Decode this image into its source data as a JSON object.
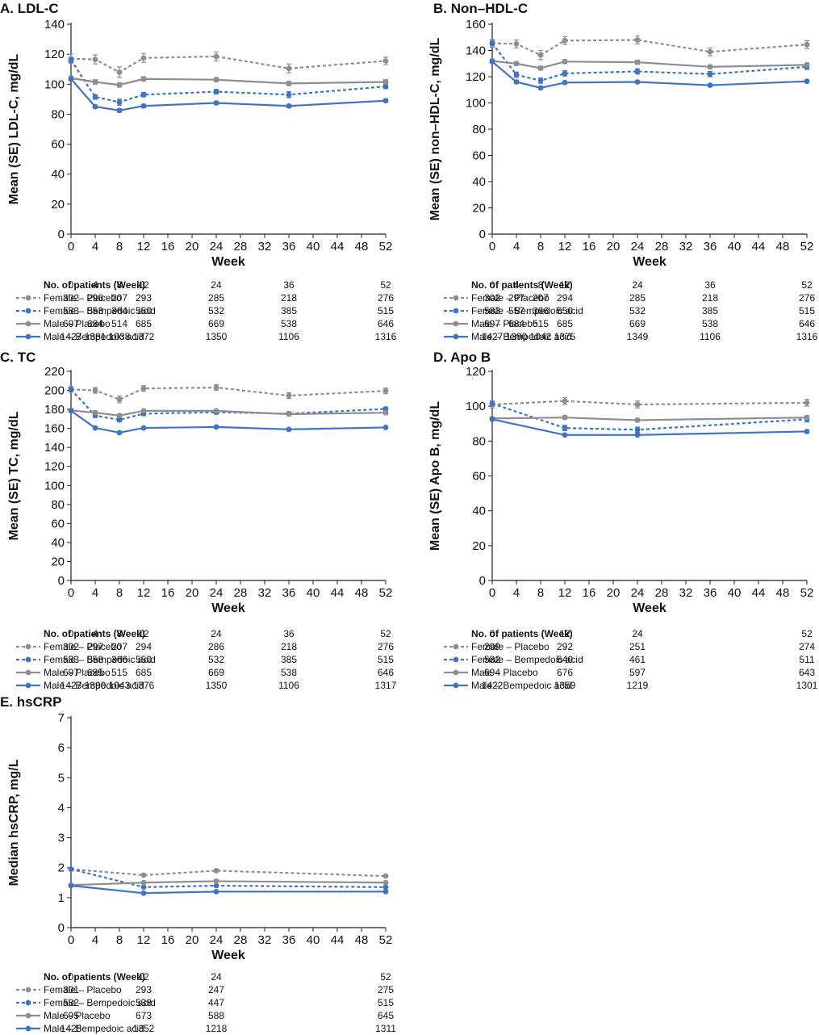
{
  "figure": {
    "n_header": "No. of patients (Week)",
    "legend_colors": {
      "female_placebo": "#8e8e8e",
      "female_bempedoic": "#3d74c4",
      "male_placebo": "#8e8e8e",
      "male_bempedoic": "#3d74c4"
    }
  },
  "chart_data": [
    {
      "id": "A",
      "type": "line",
      "title": "A. LDL-C",
      "xlabel": "Week",
      "ylabel": "Mean (SE) LDL-C, mg/dL",
      "xlim": [
        0,
        52
      ],
      "ylim": [
        0,
        140
      ],
      "xticks": [
        0,
        4,
        8,
        12,
        16,
        20,
        24,
        28,
        32,
        36,
        40,
        44,
        48,
        52
      ],
      "yticks": [
        0,
        20,
        40,
        60,
        80,
        100,
        120,
        140
      ],
      "series": [
        {
          "name": "Female – Placebo",
          "style": "dashed",
          "color": "#8e8e8e",
          "x": [
            0,
            4,
            8,
            12,
            24,
            36,
            52
          ],
          "y": [
            117,
            116.5,
            108,
            117.5,
            118.5,
            110.5,
            115.5
          ],
          "err": [
            3,
            3,
            3.5,
            3,
            3,
            3,
            2.5
          ],
          "n": [
            "302",
            "296",
            "207",
            "293",
            "285",
            "218",
            "276"
          ]
        },
        {
          "name": "Female – Bempedoic acid",
          "style": "dashed",
          "color": "#3d74c4",
          "x": [
            0,
            4,
            8,
            12,
            24,
            36,
            52
          ],
          "y": [
            116,
            91.5,
            88,
            93,
            95,
            93,
            98.5
          ],
          "err": [
            1.5,
            1.5,
            2,
            1.5,
            1.5,
            2,
            1.5
          ],
          "n": [
            "583",
            "553",
            "364",
            "550",
            "532",
            "385",
            "515"
          ]
        },
        {
          "name": "Male – Placebo",
          "style": "solid",
          "color": "#8e8e8e",
          "x": [
            0,
            4,
            8,
            12,
            24,
            36,
            52
          ],
          "y": [
            104,
            101.5,
            99.5,
            103.5,
            103,
            100.5,
            101.5
          ],
          "err": [
            1.5,
            1.5,
            1.5,
            1.5,
            1.5,
            1.5,
            1.5
          ],
          "n": [
            "697",
            "684",
            "514",
            "685",
            "669",
            "538",
            "646"
          ]
        },
        {
          "name": "Male – Bempedoic acid",
          "style": "solid",
          "color": "#3d74c4",
          "x": [
            0,
            4,
            8,
            12,
            24,
            36,
            52
          ],
          "y": [
            103.5,
            85,
            82.5,
            85.5,
            87.5,
            85.5,
            89
          ],
          "err": [
            1,
            1,
            1,
            1,
            1,
            1,
            1
          ],
          "n": [
            "1427",
            "1381",
            "1038",
            "1372",
            "1350",
            "1106",
            "1316"
          ]
        }
      ]
    },
    {
      "id": "B",
      "type": "line",
      "title": "B. Non–HDL-C",
      "xlabel": "Week",
      "ylabel": "Mean (SE) non–HDL-C, mg/dL",
      "xlim": [
        0,
        52
      ],
      "ylim": [
        0,
        160
      ],
      "xticks": [
        0,
        4,
        8,
        12,
        16,
        20,
        24,
        28,
        32,
        36,
        40,
        44,
        48,
        52
      ],
      "yticks": [
        0,
        20,
        40,
        60,
        80,
        100,
        120,
        140,
        160
      ],
      "series": [
        {
          "name": "Female – Placebo",
          "style": "dashed",
          "color": "#8e8e8e",
          "x": [
            0,
            4,
            8,
            12,
            24,
            36,
            52
          ],
          "y": [
            145.5,
            145,
            136.5,
            147.5,
            148,
            139,
            144.5
          ],
          "err": [
            3,
            3,
            3.5,
            3,
            3,
            3,
            3
          ],
          "n": [
            "302",
            "297",
            "207",
            "294",
            "285",
            "218",
            "276"
          ]
        },
        {
          "name": "Female – Bempedoic acid",
          "style": "dashed",
          "color": "#3d74c4",
          "x": [
            0,
            4,
            8,
            12,
            24,
            36,
            52
          ],
          "y": [
            145.5,
            121.5,
            117,
            122.5,
            124,
            122,
            127.5
          ],
          "err": [
            2,
            2,
            2,
            2,
            2,
            2,
            2
          ],
          "n": [
            "583",
            "557",
            "366",
            "550",
            "532",
            "385",
            "515"
          ]
        },
        {
          "name": "Male – Placebo",
          "style": "solid",
          "color": "#8e8e8e",
          "x": [
            0,
            4,
            8,
            12,
            24,
            36,
            52
          ],
          "y": [
            132,
            130,
            126.5,
            131.5,
            131,
            127.5,
            129
          ],
          "err": [
            1.5,
            1.5,
            1.5,
            1.5,
            1.5,
            1.5,
            1.5
          ],
          "n": [
            "697",
            "684",
            "515",
            "685",
            "669",
            "538",
            "646"
          ]
        },
        {
          "name": "Male – Bempedoic acid",
          "style": "solid",
          "color": "#3d74c4",
          "x": [
            0,
            4,
            8,
            12,
            24,
            36,
            52
          ],
          "y": [
            131.5,
            116,
            111.5,
            115.5,
            116,
            113.5,
            116.5
          ],
          "err": [
            1,
            1,
            1,
            1,
            1,
            1,
            1
          ],
          "n": [
            "1427",
            "1390",
            "1042",
            "1375",
            "1349",
            "1106",
            "1316"
          ]
        }
      ]
    },
    {
      "id": "C",
      "type": "line",
      "title": "C. TC",
      "xlabel": "Week",
      "ylabel": "Mean (SE) TC, mg/dL",
      "xlim": [
        0,
        52
      ],
      "ylim": [
        0,
        220
      ],
      "xticks": [
        0,
        4,
        8,
        12,
        16,
        20,
        24,
        28,
        32,
        36,
        40,
        44,
        48,
        52
      ],
      "yticks": [
        0,
        20,
        40,
        60,
        80,
        100,
        120,
        140,
        160,
        180,
        200,
        220
      ],
      "series": [
        {
          "name": "Female – Placebo",
          "style": "dashed",
          "color": "#8e8e8e",
          "x": [
            0,
            4,
            8,
            12,
            24,
            36,
            52
          ],
          "y": [
            201,
            200,
            190.5,
            202,
            203,
            194.5,
            199.5
          ],
          "err": [
            3,
            3,
            3.5,
            3,
            3,
            3,
            3
          ],
          "n": [
            "302",
            "297",
            "207",
            "294",
            "286",
            "218",
            "276"
          ]
        },
        {
          "name": "Female – Bempedoic acid",
          "style": "dashed",
          "color": "#3d74c4",
          "x": [
            0,
            4,
            8,
            12,
            24,
            36,
            52
          ],
          "y": [
            201,
            173.5,
            169,
            175.5,
            177,
            175.5,
            180.5
          ],
          "err": [
            2,
            2,
            2,
            2,
            2,
            2,
            2
          ],
          "n": [
            "583",
            "558",
            "366",
            "550",
            "532",
            "385",
            "515"
          ]
        },
        {
          "name": "Male – Placebo",
          "style": "solid",
          "color": "#8e8e8e",
          "x": [
            0,
            4,
            8,
            12,
            24,
            36,
            52
          ],
          "y": [
            179,
            176.5,
            173.5,
            178.5,
            178.5,
            175,
            176.5
          ],
          "err": [
            1.5,
            1.5,
            1.5,
            1.5,
            1.5,
            1.5,
            1.5
          ],
          "n": [
            "697",
            "685",
            "515",
            "685",
            "669",
            "538",
            "646"
          ]
        },
        {
          "name": "Male – Bempedoic acid",
          "style": "solid",
          "color": "#3d74c4",
          "x": [
            0,
            4,
            8,
            12,
            24,
            36,
            52
          ],
          "y": [
            178.5,
            160.5,
            155.5,
            160.5,
            161.5,
            159,
            161
          ],
          "err": [
            1,
            1,
            1,
            1,
            1,
            1,
            1
          ],
          "n": [
            "1427",
            "1390",
            "1043",
            "1376",
            "1350",
            "1106",
            "1317"
          ]
        }
      ]
    },
    {
      "id": "D",
      "type": "line",
      "title": "D. Apo B",
      "xlabel": "Week",
      "ylabel": "Mean (SE) Apo B, mg/dL",
      "xlim": [
        0,
        52
      ],
      "ylim": [
        0,
        120
      ],
      "xticks": [
        0,
        4,
        8,
        12,
        16,
        20,
        24,
        28,
        32,
        36,
        40,
        44,
        48,
        52
      ],
      "yticks": [
        0,
        20,
        40,
        60,
        80,
        100,
        120
      ],
      "series": [
        {
          "name": "Female – Placebo",
          "style": "dashed",
          "color": "#8e8e8e",
          "x": [
            0,
            12,
            24,
            52
          ],
          "y": [
            101,
            103,
            101,
            102
          ],
          "err": [
            2,
            2,
            2,
            2
          ],
          "n": [
            "299",
            "292",
            "251",
            "274"
          ]
        },
        {
          "name": "Female – Bempedoic acid",
          "style": "dashed",
          "color": "#3d74c4",
          "x": [
            0,
            12,
            24,
            52
          ],
          "y": [
            101.5,
            87.5,
            86.5,
            92.5
          ],
          "err": [
            1.5,
            1.5,
            1.5,
            1.5
          ],
          "n": [
            "582",
            "540",
            "461",
            "511"
          ]
        },
        {
          "name": "Male – Placebo",
          "style": "solid",
          "color": "#8e8e8e",
          "x": [
            0,
            12,
            24,
            52
          ],
          "y": [
            93,
            93.5,
            92,
            93.5
          ],
          "err": [
            1,
            1,
            1,
            1
          ],
          "n": [
            "694",
            "676",
            "597",
            "643"
          ]
        },
        {
          "name": "Male – Bempedoic acid",
          "style": "solid",
          "color": "#3d74c4",
          "x": [
            0,
            12,
            24,
            52
          ],
          "y": [
            92.5,
            83.5,
            83.5,
            85.5
          ],
          "err": [
            0.7,
            0.7,
            0.7,
            0.7
          ],
          "n": [
            "1422",
            "1359",
            "1219",
            "1301"
          ]
        }
      ]
    },
    {
      "id": "E",
      "type": "line",
      "title": "E. hsCRP",
      "xlabel": "Week",
      "ylabel": "Median hsCRP, mg/L",
      "xlim": [
        0,
        52
      ],
      "ylim": [
        0,
        7
      ],
      "xticks": [
        0,
        4,
        8,
        12,
        16,
        20,
        24,
        28,
        32,
        36,
        40,
        44,
        48,
        52
      ],
      "yticks": [
        0,
        1,
        2,
        3,
        4,
        5,
        6,
        7
      ],
      "series": [
        {
          "name": "Female – Placebo",
          "style": "dashed",
          "color": "#8e8e8e",
          "x": [
            0,
            12,
            24,
            52
          ],
          "y": [
            1.95,
            1.75,
            1.9,
            1.72
          ],
          "err": [
            0,
            0,
            0,
            0
          ],
          "n": [
            "301",
            "293",
            "247",
            "275"
          ]
        },
        {
          "name": "Female – Bempedoic acid",
          "style": "dashed",
          "color": "#3d74c4",
          "x": [
            0,
            12,
            24,
            52
          ],
          "y": [
            1.95,
            1.35,
            1.4,
            1.35
          ],
          "err": [
            0,
            0,
            0,
            0
          ],
          "n": [
            "582",
            "538",
            "447",
            "515"
          ]
        },
        {
          "name": "Male – Placebo",
          "style": "solid",
          "color": "#8e8e8e",
          "x": [
            0,
            12,
            24,
            52
          ],
          "y": [
            1.42,
            1.5,
            1.55,
            1.5
          ],
          "err": [
            0,
            0,
            0,
            0
          ],
          "n": [
            "695",
            "673",
            "588",
            "645"
          ]
        },
        {
          "name": "Male – Bempedoic acid",
          "style": "solid",
          "color": "#3d74c4",
          "x": [
            0,
            12,
            24,
            52
          ],
          "y": [
            1.4,
            1.15,
            1.2,
            1.2
          ],
          "err": [
            0,
            0,
            0,
            0
          ],
          "n": [
            "1425",
            "1352",
            "1218",
            "1311"
          ]
        }
      ]
    }
  ]
}
